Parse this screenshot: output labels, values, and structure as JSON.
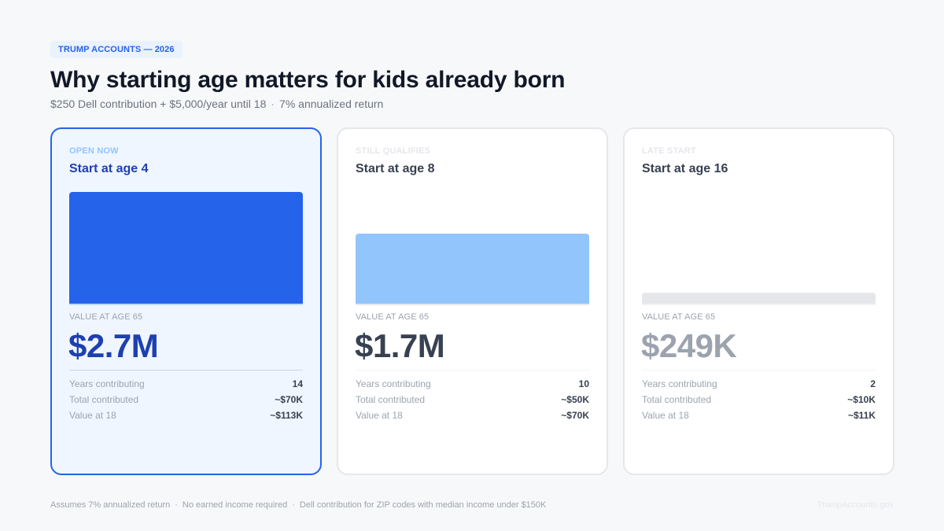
{
  "header": {
    "badge": "TRUMP ACCOUNTS — 2026",
    "title": "Why starting age matters for kids already born",
    "subtitle_left": "$250 Dell contribution + $5,000/year until 18",
    "subtitle_sep": "·",
    "subtitle_right": "7% annualized return"
  },
  "value_label": "VALUE AT AGE 65",
  "stat_labels": {
    "years": "Years contributing",
    "total": "Total contributed",
    "at18": "Value at 18"
  },
  "cards": [
    {
      "eyebrow": "OPEN NOW",
      "title": "Start at age 4",
      "value": "$2.7M",
      "value_at_65_millions": 2.7,
      "bar_color": "#2563eb",
      "years": "14",
      "total": "~$70K",
      "at18": "~$113K"
    },
    {
      "eyebrow": "STILL QUALIFIES",
      "title": "Start at age 8",
      "value": "$1.7M",
      "value_at_65_millions": 1.7,
      "bar_color": "#93c5fd",
      "years": "10",
      "total": "~$50K",
      "at18": "~$70K"
    },
    {
      "eyebrow": "LATE START",
      "title": "Start at age 16",
      "value": "$249K",
      "value_at_65_millions": 0.249,
      "bar_color": "#e5e7eb",
      "years": "2",
      "total": "~$10K",
      "at18": "~$11K"
    }
  ],
  "footer": {
    "note1": "Assumes 7% annualized return",
    "note2": "No earned income required",
    "note3": "Dell contribution for ZIP codes with median income under $150K",
    "sep": "·",
    "source": "TrumpAccounts.gov"
  }
}
